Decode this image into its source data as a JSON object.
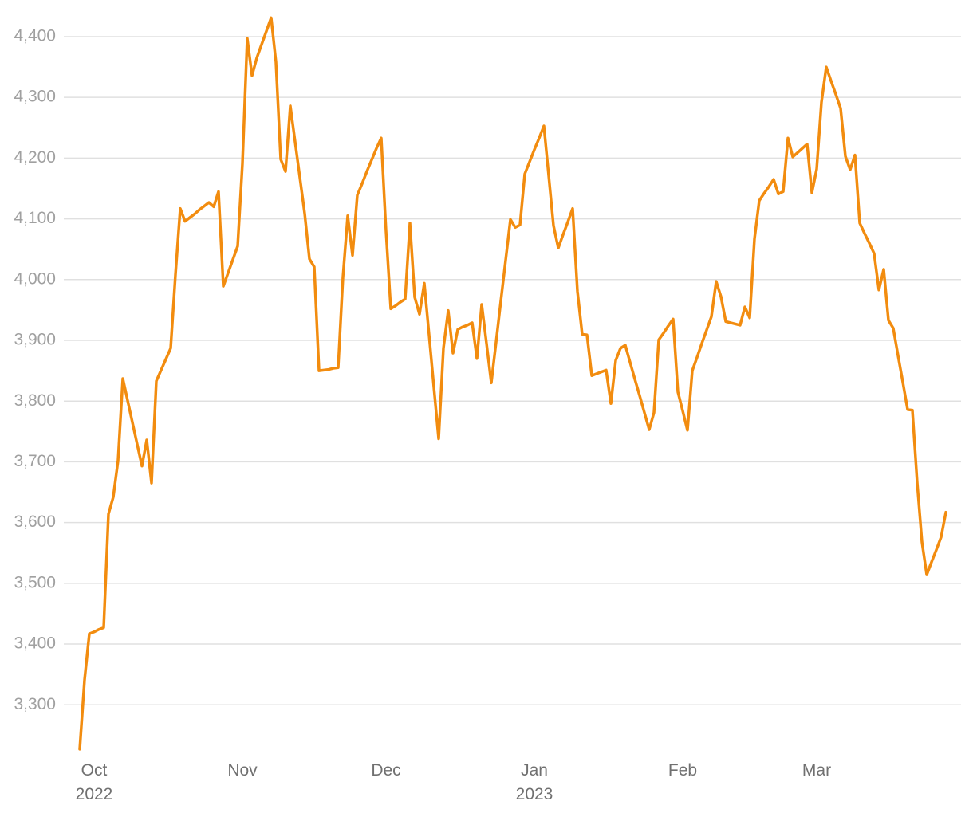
{
  "chart_data": {
    "type": "line",
    "categories": [
      null,
      null,
      null,
      "Oct\n2022",
      null,
      null,
      null,
      null,
      null,
      null,
      null,
      null,
      null,
      null,
      null,
      null,
      null,
      null,
      null,
      null,
      null,
      null,
      null,
      null,
      null,
      null,
      null,
      null,
      null,
      null,
      null,
      null,
      null,
      null,
      "Nov",
      null,
      null,
      null,
      null,
      null,
      null,
      null,
      null,
      null,
      null,
      null,
      null,
      null,
      null,
      null,
      null,
      null,
      null,
      null,
      null,
      null,
      null,
      null,
      null,
      null,
      null,
      null,
      null,
      null,
      "Dec",
      null,
      null,
      null,
      null,
      null,
      null,
      null,
      null,
      null,
      null,
      null,
      null,
      null,
      null,
      null,
      null,
      null,
      null,
      null,
      null,
      null,
      null,
      null,
      null,
      null,
      null,
      null,
      null,
      null,
      null,
      "Jan\n2023",
      null,
      null,
      null,
      null,
      null,
      null,
      null,
      null,
      null,
      null,
      null,
      null,
      null,
      null,
      null,
      null,
      null,
      null,
      null,
      null,
      null,
      null,
      null,
      null,
      null,
      null,
      null,
      null,
      null,
      null,
      "Feb",
      null,
      null,
      null,
      null,
      null,
      null,
      null,
      null,
      null,
      null,
      null,
      null,
      null,
      null,
      null,
      null,
      null,
      null,
      null,
      null,
      null,
      null,
      null,
      null,
      null,
      null,
      null,
      "Mar",
      null,
      null,
      null,
      null,
      null,
      null,
      null,
      null,
      null,
      null,
      null,
      null,
      null,
      null,
      null,
      null,
      null,
      null,
      null,
      null,
      null,
      null,
      null,
      null,
      null,
      null,
      null
    ],
    "values": [
      3227,
      3341,
      3417,
      3420,
      3424,
      3427,
      3614,
      3642,
      3702,
      3837,
      3801,
      3765,
      3729,
      3693,
      3736,
      3665,
      3833,
      3851,
      3869,
      3887,
      4008,
      4117,
      4096,
      4102,
      4108,
      4115,
      4121,
      4127,
      4120,
      4145,
      3989,
      4011,
      4033,
      4055,
      4191,
      4397,
      4336,
      4365,
      4387,
      4409,
      4431,
      4358,
      4198,
      4178,
      4286,
      4227,
      4168,
      4109,
      4034,
      4021,
      3850,
      3851,
      3852,
      3854,
      3855,
      4004,
      4105,
      4040,
      4139,
      4158,
      4178,
      4197,
      4216,
      4233,
      4080,
      3952,
      3957,
      3963,
      3968,
      4093,
      3971,
      3943,
      3994,
      3909,
      3823,
      3738,
      3887,
      3949,
      3879,
      3918,
      3922,
      3925,
      3929,
      3870,
      3959,
      3895,
      3830,
      3897,
      3965,
      4032,
      4099,
      4086,
      4090,
      4174,
      4194,
      4214,
      4233,
      4253,
      4171,
      4089,
      4052,
      4074,
      4095,
      4117,
      3981,
      3910,
      3909,
      3842,
      3845,
      3848,
      3851,
      3796,
      3867,
      3887,
      3892,
      3864,
      3836,
      3809,
      3781,
      3753,
      3781,
      3901,
      3912,
      3924,
      3935,
      3815,
      3784,
      3752,
      3850,
      3872,
      3895,
      3917,
      3939,
      3997,
      3972,
      3931,
      3929,
      3927,
      3925,
      3955,
      3937,
      4067,
      4130,
      4142,
      4153,
      4165,
      4141,
      4145,
      4233,
      4202,
      4209,
      4216,
      4223,
      4143,
      4182,
      4292,
      4350,
      4327,
      4305,
      4282,
      4203,
      4181,
      4205,
      4093,
      4076,
      4060,
      4043,
      3983,
      4017,
      3933,
      3920,
      3875,
      3831,
      3786,
      3785,
      3666,
      3568,
      3514,
      3535,
      3555,
      3576,
      3617
    ],
    "color": "#f28c0f",
    "ylim": [
      3220,
      4440
    ],
    "yticks": [
      {
        "value": 3300,
        "label": "3,300"
      },
      {
        "value": 3400,
        "label": "3,400"
      },
      {
        "value": 3500,
        "label": "3,500"
      },
      {
        "value": 3600,
        "label": "3,600"
      },
      {
        "value": 3700,
        "label": "3,700"
      },
      {
        "value": 3800,
        "label": "3,800"
      },
      {
        "value": 3900,
        "label": "3,900"
      },
      {
        "value": 4000,
        "label": "4,000"
      },
      {
        "value": 4100,
        "label": "4,100"
      },
      {
        "value": 4200,
        "label": "4,200"
      },
      {
        "value": 4300,
        "label": "4,300"
      },
      {
        "value": 4400,
        "label": "4,400"
      }
    ],
    "grid": true
  }
}
